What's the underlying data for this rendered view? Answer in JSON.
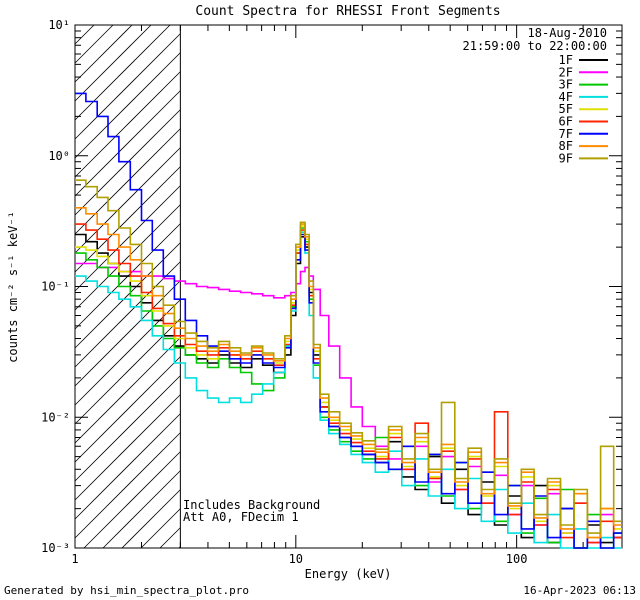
{
  "title": "Count Spectra for RHESSI Front Segments",
  "header": {
    "date": "18-Aug-2010",
    "time_range": "21:59:00 to 22:00:00"
  },
  "annotations": {
    "background": "Includes Background",
    "attenuator": "Att A0, FDecim 1"
  },
  "footer": {
    "generated_by": "Generated by hsi_min_spectra_plot.pro",
    "timestamp": "16-Apr-2023 06:13"
  },
  "axes": {
    "xlabel": "Energy (keV)",
    "ylabel": "counts cm⁻² s⁻¹ keV⁻¹",
    "x_tick_labels": [
      "1",
      "10",
      "100"
    ],
    "y_tick_labels": [
      "10⁻³",
      "10⁻²",
      "10⁻¹",
      "10⁰",
      "10¹"
    ]
  },
  "chart_data": {
    "type": "line",
    "subtype": "step-spectrum",
    "title": "Count Spectra for RHESSI Front Segments",
    "xlabel": "Energy (keV)",
    "ylabel": "counts cm^-2 s^-1 keV^-1",
    "xscale": "log",
    "yscale": "log",
    "xlim": [
      1,
      300
    ],
    "ylim": [
      0.001,
      10
    ],
    "x_ticks": [
      1,
      10,
      100
    ],
    "y_ticks": [
      0.001,
      0.01,
      0.1,
      1,
      10
    ],
    "grid": false,
    "legend_position": "top-right",
    "hatched_region_kev": [
      1,
      3
    ],
    "x": [
      1.0,
      1.12,
      1.26,
      1.41,
      1.58,
      1.78,
      2.0,
      2.24,
      2.51,
      2.82,
      3.16,
      3.55,
      3.98,
      4.47,
      5.01,
      5.62,
      6.31,
      7.08,
      7.94,
      8.91,
      9.5,
      10.0,
      10.5,
      11.0,
      11.5,
      12.0,
      12.9,
      14.1,
      15.8,
      17.8,
      20.0,
      22.9,
      26.3,
      30.2,
      34.7,
      39.8,
      45.7,
      52.5,
      60.3,
      69.2,
      79.4,
      91.2,
      105,
      120,
      138,
      158,
      182,
      209,
      240,
      275
    ],
    "series": [
      {
        "name": "1F",
        "color": "#000000",
        "values": [
          0.25,
          0.22,
          0.18,
          0.15,
          0.12,
          0.1,
          0.075,
          0.055,
          0.042,
          0.035,
          0.03,
          0.028,
          0.026,
          0.03,
          0.026,
          0.024,
          0.028,
          0.025,
          0.022,
          0.03,
          0.06,
          0.15,
          0.24,
          0.2,
          0.09,
          0.03,
          0.012,
          0.0085,
          0.007,
          0.006,
          0.0052,
          0.0045,
          0.0065,
          0.0035,
          0.0028,
          0.005,
          0.0022,
          0.004,
          0.0018,
          0.0032,
          0.0015,
          0.0025,
          0.0012,
          0.003,
          0.0011,
          0.002,
          0.001,
          0.0015,
          0.0011,
          0.0012
        ]
      },
      {
        "name": "2F",
        "color": "#ff00ff",
        "values": [
          0.15,
          0.15,
          0.14,
          0.14,
          0.13,
          0.13,
          0.12,
          0.12,
          0.115,
          0.11,
          0.105,
          0.1,
          0.098,
          0.095,
          0.092,
          0.09,
          0.088,
          0.085,
          0.082,
          0.085,
          0.09,
          0.105,
          0.13,
          0.14,
          0.12,
          0.095,
          0.06,
          0.035,
          0.02,
          0.012,
          0.0085,
          0.006,
          0.0048,
          0.004,
          0.006,
          0.0032,
          0.005,
          0.0028,
          0.0042,
          0.0022,
          0.0036,
          0.0018,
          0.003,
          0.0015,
          0.0026,
          0.0013,
          0.0022,
          0.0011,
          0.0018,
          0.0012
        ]
      },
      {
        "name": "3F",
        "color": "#00c800",
        "values": [
          0.18,
          0.16,
          0.14,
          0.12,
          0.1,
          0.085,
          0.065,
          0.05,
          0.04,
          0.034,
          0.03,
          0.026,
          0.024,
          0.028,
          0.024,
          0.022,
          0.018,
          0.016,
          0.02,
          0.035,
          0.07,
          0.18,
          0.28,
          0.22,
          0.08,
          0.025,
          0.01,
          0.008,
          0.0065,
          0.0055,
          0.0048,
          0.007,
          0.004,
          0.006,
          0.003,
          0.0052,
          0.0025,
          0.0045,
          0.002,
          0.0038,
          0.0016,
          0.003,
          0.0013,
          0.0024,
          0.0011,
          0.0028,
          0.001,
          0.0018,
          0.001,
          0.0013
        ]
      },
      {
        "name": "4F",
        "color": "#00e0e0",
        "values": [
          0.12,
          0.11,
          0.1,
          0.09,
          0.08,
          0.07,
          0.055,
          0.042,
          0.033,
          0.026,
          0.02,
          0.016,
          0.014,
          0.013,
          0.014,
          0.013,
          0.015,
          0.018,
          0.022,
          0.035,
          0.065,
          0.16,
          0.26,
          0.18,
          0.06,
          0.02,
          0.0095,
          0.0075,
          0.0062,
          0.0052,
          0.0045,
          0.0038,
          0.0055,
          0.003,
          0.0048,
          0.0025,
          0.004,
          0.002,
          0.0034,
          0.0016,
          0.0028,
          0.0013,
          0.0022,
          0.0011,
          0.0018,
          0.001,
          0.0014,
          0.001,
          0.0012,
          0.001
        ]
      },
      {
        "name": "5F",
        "color": "#e0e000",
        "values": [
          0.2,
          0.19,
          0.17,
          0.15,
          0.13,
          0.11,
          0.085,
          0.065,
          0.05,
          0.04,
          0.034,
          0.03,
          0.028,
          0.032,
          0.03,
          0.028,
          0.03,
          0.028,
          0.026,
          0.038,
          0.075,
          0.19,
          0.29,
          0.23,
          0.095,
          0.032,
          0.013,
          0.0095,
          0.008,
          0.0068,
          0.0058,
          0.005,
          0.0075,
          0.0042,
          0.0065,
          0.0035,
          0.0058,
          0.003,
          0.005,
          0.0025,
          0.0042,
          0.002,
          0.0035,
          0.0016,
          0.003,
          0.0013,
          0.0026,
          0.0012,
          0.002,
          0.0014
        ]
      },
      {
        "name": "6F",
        "color": "#ff2400",
        "values": [
          0.3,
          0.27,
          0.23,
          0.19,
          0.15,
          0.12,
          0.09,
          0.068,
          0.052,
          0.042,
          0.036,
          0.032,
          0.03,
          0.034,
          0.03,
          0.028,
          0.032,
          0.028,
          0.025,
          0.036,
          0.072,
          0.18,
          0.27,
          0.21,
          0.085,
          0.028,
          0.012,
          0.009,
          0.0075,
          0.0064,
          0.0055,
          0.0048,
          0.007,
          0.004,
          0.009,
          0.0034,
          0.0055,
          0.0028,
          0.0048,
          0.0022,
          0.011,
          0.0018,
          0.0032,
          0.0015,
          0.0028,
          0.0012,
          0.0022,
          0.0011,
          0.0016,
          0.0012
        ]
      },
      {
        "name": "7F",
        "color": "#0000ff",
        "values": [
          3.0,
          2.6,
          2.0,
          1.4,
          0.9,
          0.55,
          0.32,
          0.19,
          0.12,
          0.08,
          0.055,
          0.042,
          0.035,
          0.032,
          0.028,
          0.026,
          0.03,
          0.026,
          0.024,
          0.034,
          0.068,
          0.16,
          0.25,
          0.19,
          0.075,
          0.026,
          0.011,
          0.0085,
          0.007,
          0.006,
          0.0052,
          0.0045,
          0.004,
          0.006,
          0.0032,
          0.0052,
          0.0026,
          0.0045,
          0.0022,
          0.0038,
          0.0018,
          0.003,
          0.0014,
          0.0025,
          0.0012,
          0.002,
          0.001,
          0.0016,
          0.001,
          0.0013
        ]
      },
      {
        "name": "8F",
        "color": "#ff8c00",
        "values": [
          0.4,
          0.36,
          0.3,
          0.25,
          0.2,
          0.16,
          0.12,
          0.085,
          0.062,
          0.048,
          0.04,
          0.035,
          0.032,
          0.036,
          0.032,
          0.03,
          0.034,
          0.03,
          0.027,
          0.04,
          0.08,
          0.2,
          0.3,
          0.24,
          0.1,
          0.034,
          0.014,
          0.01,
          0.0085,
          0.0072,
          0.0062,
          0.0054,
          0.008,
          0.0045,
          0.007,
          0.0038,
          0.0062,
          0.0032,
          0.0054,
          0.0026,
          0.0045,
          0.0021,
          0.0038,
          0.0017,
          0.0032,
          0.0014,
          0.0026,
          0.0012,
          0.002,
          0.0015
        ]
      },
      {
        "name": "9F",
        "color": "#b0a000",
        "values": [
          0.65,
          0.58,
          0.48,
          0.38,
          0.28,
          0.21,
          0.15,
          0.1,
          0.072,
          0.054,
          0.044,
          0.038,
          0.034,
          0.038,
          0.034,
          0.031,
          0.035,
          0.031,
          0.028,
          0.042,
          0.085,
          0.21,
          0.31,
          0.25,
          0.11,
          0.036,
          0.015,
          0.011,
          0.009,
          0.0076,
          0.0066,
          0.0057,
          0.0085,
          0.0048,
          0.0075,
          0.004,
          0.013,
          0.0034,
          0.0058,
          0.0028,
          0.0048,
          0.0022,
          0.004,
          0.0018,
          0.0034,
          0.0015,
          0.0028,
          0.0013,
          0.006,
          0.0016
        ]
      }
    ]
  }
}
